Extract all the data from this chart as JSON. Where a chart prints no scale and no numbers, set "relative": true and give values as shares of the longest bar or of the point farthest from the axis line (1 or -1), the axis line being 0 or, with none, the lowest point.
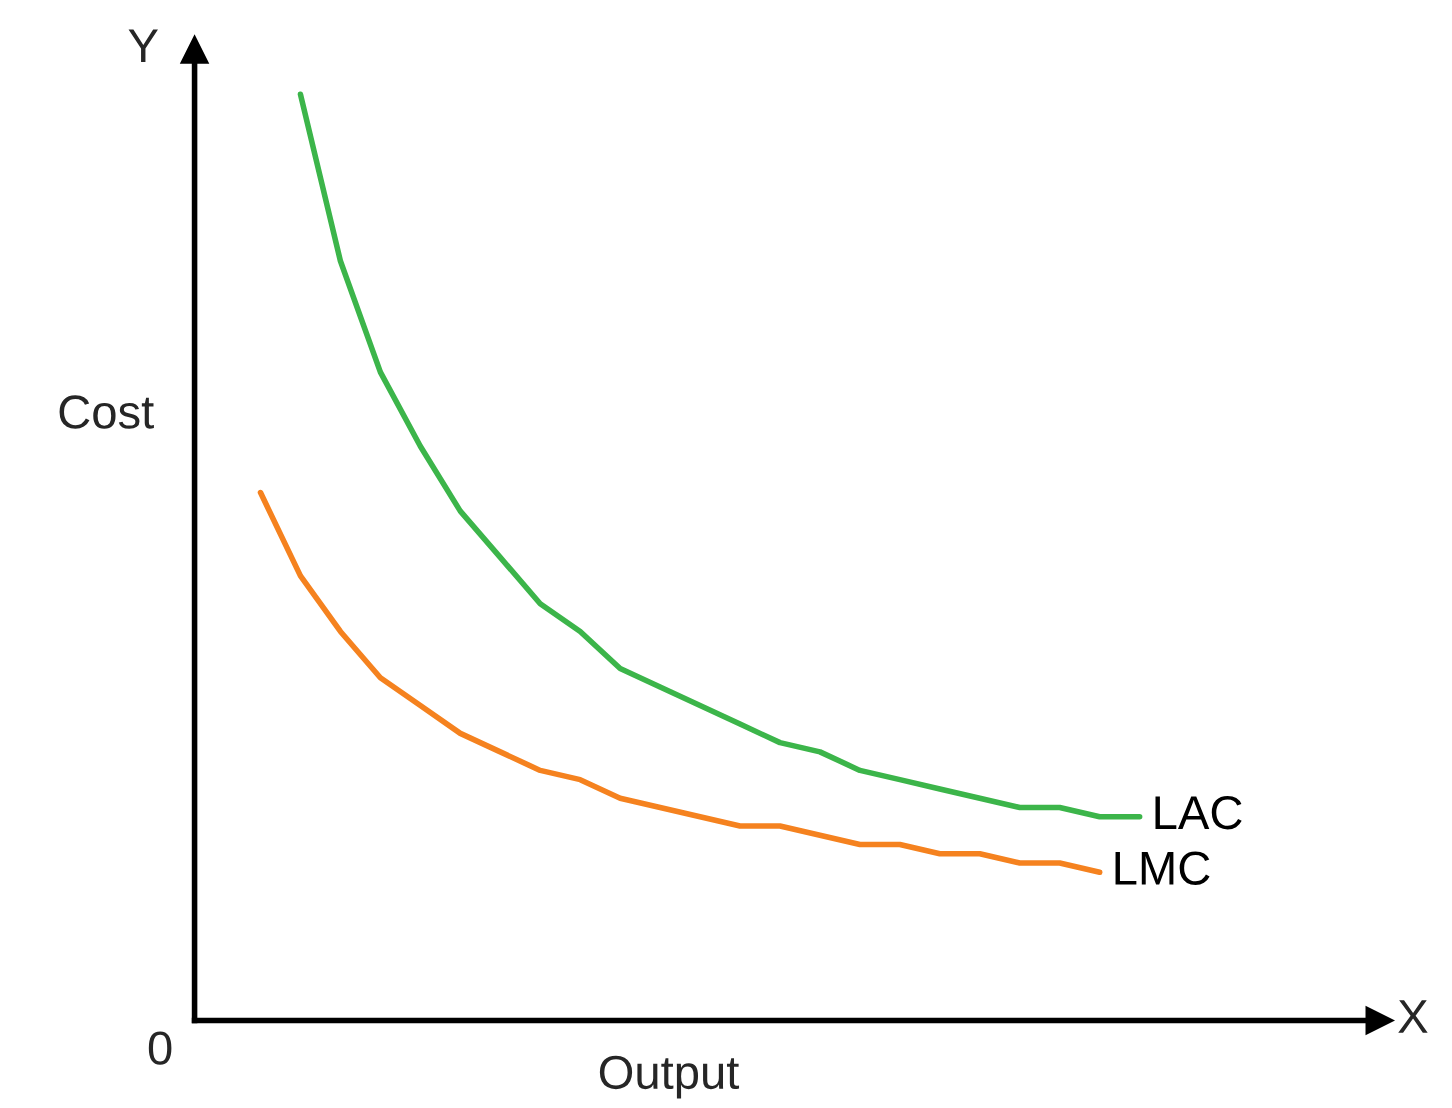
{
  "chart_data": {
    "type": "line",
    "relative": true,
    "xlabel": "Output",
    "ylabel": "Cost",
    "annotations": [
      "Y",
      "X",
      "0"
    ],
    "categories": [
      null,
      null,
      null,
      null,
      null,
      null,
      null,
      null,
      null,
      null,
      null,
      null,
      null,
      null,
      null,
      null,
      null,
      null,
      null,
      null,
      null,
      null,
      null
    ],
    "series": [
      {
        "name": "LAC",
        "color": "#3cb54a",
        "values": [
          null,
          1.0,
          0.82,
          0.7,
          0.62,
          0.55,
          0.5,
          0.45,
          0.42,
          0.38,
          0.36,
          0.34,
          0.32,
          0.3,
          0.29,
          0.27,
          0.26,
          0.25,
          0.24,
          0.23,
          0.23,
          0.22,
          0.22
        ]
      },
      {
        "name": "LMC",
        "color": "#f5821f",
        "values": [
          0.57,
          0.48,
          0.42,
          0.37,
          0.34,
          0.31,
          0.29,
          0.27,
          0.26,
          0.24,
          0.23,
          0.22,
          0.21,
          0.21,
          0.2,
          0.19,
          0.19,
          0.18,
          0.18,
          0.17,
          0.17,
          0.16,
          null
        ]
      }
    ],
    "legend": false,
    "marker": "none",
    "line_style": "solid"
  }
}
